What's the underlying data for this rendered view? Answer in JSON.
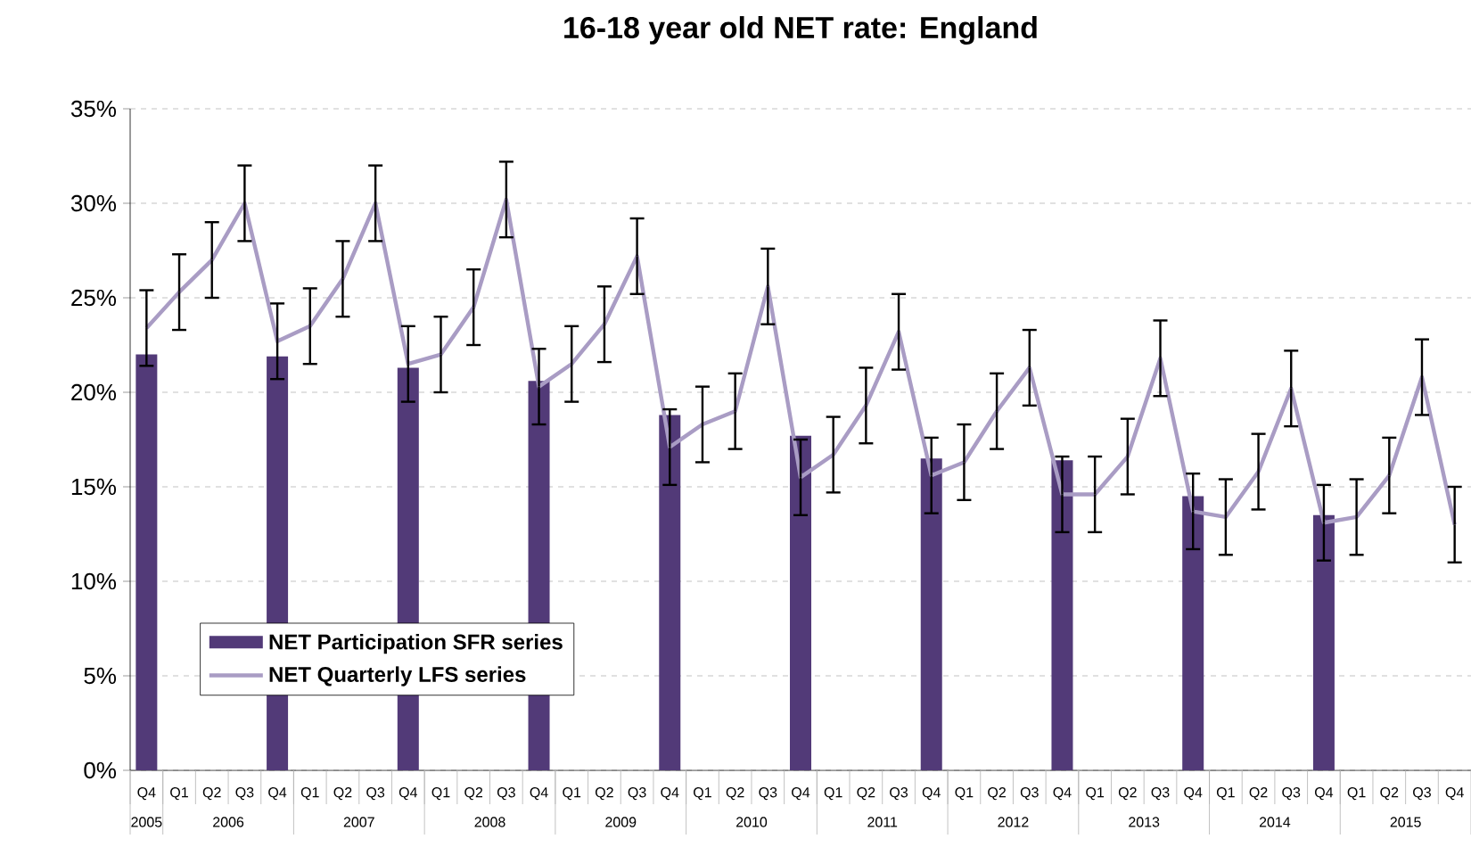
{
  "chart_data": {
    "type": "bar",
    "title": "16-18 year old NET rate: England",
    "categories": [
      "Q4",
      "Q1",
      "Q2",
      "Q3",
      "Q4",
      "Q1",
      "Q2",
      "Q3",
      "Q4",
      "Q1",
      "Q2",
      "Q3",
      "Q4",
      "Q1",
      "Q2",
      "Q3",
      "Q4",
      "Q1",
      "Q2",
      "Q3",
      "Q4",
      "Q1",
      "Q2",
      "Q3",
      "Q4",
      "Q1",
      "Q2",
      "Q3",
      "Q4",
      "Q1",
      "Q2",
      "Q3",
      "Q4",
      "Q1",
      "Q2",
      "Q3",
      "Q4",
      "Q1",
      "Q2",
      "Q3",
      "Q4"
    ],
    "series": [
      {
        "name": "NET Participation SFR series",
        "color": "#523a78",
        "values": [
          22.0,
          null,
          null,
          null,
          21.9,
          null,
          null,
          null,
          21.3,
          null,
          null,
          null,
          20.6,
          null,
          null,
          null,
          18.8,
          null,
          null,
          null,
          17.7,
          null,
          null,
          null,
          16.5,
          null,
          null,
          null,
          16.4,
          null,
          null,
          null,
          14.5,
          null,
          null,
          null,
          13.5,
          null,
          null,
          null,
          null
        ]
      },
      {
        "name": "NET Quarterly LFS series",
        "type": "line",
        "color": "#a99cc4",
        "values": [
          23.4,
          25.3,
          27.0,
          30.0,
          22.7,
          23.5,
          26.0,
          30.0,
          21.5,
          22.0,
          24.5,
          30.2,
          20.3,
          21.5,
          23.6,
          27.2,
          17.1,
          18.3,
          19.0,
          25.6,
          15.5,
          16.7,
          19.3,
          23.2,
          15.6,
          16.3,
          19.0,
          21.3,
          14.6,
          14.6,
          16.6,
          21.8,
          13.7,
          13.4,
          15.8,
          20.2,
          13.1,
          13.4,
          15.6,
          20.8,
          13.0
        ],
        "errors": [
          2,
          2,
          2,
          2,
          2,
          2,
          2,
          2,
          2,
          2,
          2,
          2,
          2,
          2,
          2,
          2,
          2,
          2,
          2,
          2,
          2,
          2,
          2,
          2,
          2,
          2,
          2,
          2,
          2,
          2,
          2,
          2,
          2,
          2,
          2,
          2,
          2,
          2,
          2,
          2,
          2
        ]
      }
    ],
    "ylim": [
      0,
      35
    ],
    "yticks": [
      {
        "value": 0,
        "label": "0%"
      },
      {
        "value": 5,
        "label": "5%"
      },
      {
        "value": 10,
        "label": "10%"
      },
      {
        "value": 15,
        "label": "15%"
      },
      {
        "value": 20,
        "label": "20%"
      },
      {
        "value": 25,
        "label": "25%"
      },
      {
        "value": 30,
        "label": "30%"
      },
      {
        "value": 35,
        "label": "35%"
      }
    ],
    "grid": "y",
    "legend": "bottom left",
    "marker": "none",
    "line_style": "solid",
    "annotations": [
      {
        "text": "2005"
      },
      {
        "text": "2006"
      },
      {
        "text": "2007"
      },
      {
        "text": "2008"
      },
      {
        "text": "2009"
      },
      {
        "text": "2010"
      },
      {
        "text": "2011"
      },
      {
        "text": "2012"
      },
      {
        "text": "2013"
      },
      {
        "text": "2014"
      },
      {
        "text": "2015"
      }
    ]
  }
}
